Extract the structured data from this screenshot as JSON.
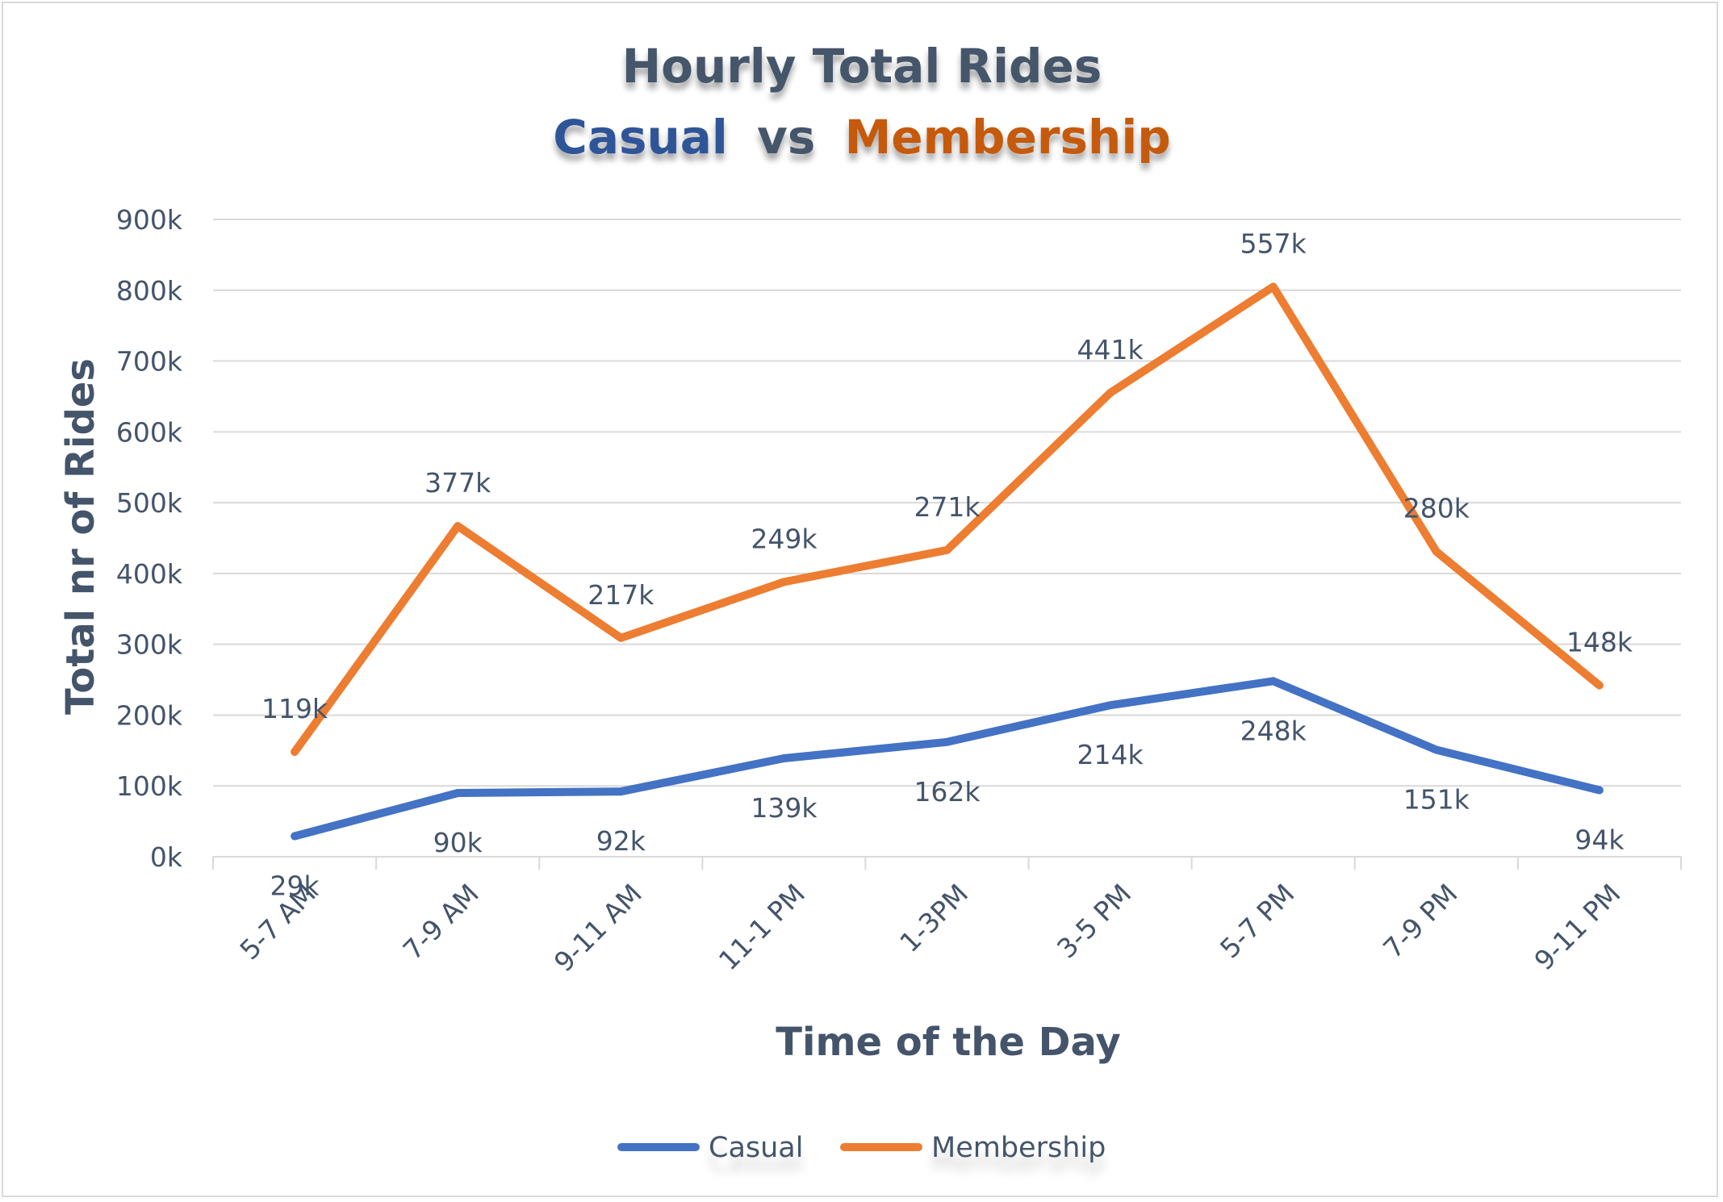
{
  "chart_data": {
    "type": "line",
    "title_line1": "Hourly Total Rides",
    "title_line2": {
      "casual": "Casual",
      "vs": "vs",
      "membership": "Membership"
    },
    "xlabel": "Time of the Day",
    "ylabel": "Total nr of Rides",
    "ylim": [
      0,
      900000
    ],
    "yticks": [
      {
        "value": 0,
        "label": "0k"
      },
      {
        "value": 100000,
        "label": "100k"
      },
      {
        "value": 200000,
        "label": "200k"
      },
      {
        "value": 300000,
        "label": "300k"
      },
      {
        "value": 400000,
        "label": "400k"
      },
      {
        "value": 500000,
        "label": "500k"
      },
      {
        "value": 600000,
        "label": "600k"
      },
      {
        "value": 700000,
        "label": "700k"
      },
      {
        "value": 800000,
        "label": "800k"
      },
      {
        "value": 900000,
        "label": "900k"
      }
    ],
    "categories": [
      "5-7 AM",
      "7-9 AM",
      "9-11 AM",
      "11-1 PM",
      "1-3PM",
      "3-5 PM",
      "5-7 PM",
      "7-9 PM",
      "9-11 PM"
    ],
    "series": [
      {
        "name": "Casual",
        "color": "#4472c4",
        "values": [
          29000,
          90000,
          92000,
          139000,
          162000,
          214000,
          248000,
          151000,
          94000
        ],
        "labels": [
          "29k",
          "90k",
          "92k",
          "139k",
          "162k",
          "214k",
          "248k",
          "151k",
          "94k"
        ]
      },
      {
        "name": "Membership",
        "color": "#ed7d31",
        "values": [
          148000,
          467000,
          309000,
          388000,
          433000,
          655000,
          805000,
          431000,
          242000
        ],
        "labels": [
          "119k",
          "377k",
          "217k",
          "249k",
          "271k",
          "441k",
          "557k",
          "280k",
          "148k"
        ]
      }
    ],
    "grid": true,
    "legend_position": "bottom",
    "colors": {
      "title": "#44546a",
      "casual_title": "#2f5597",
      "membership_title": "#c55a11",
      "gridline": "#d9d9d9",
      "tick_text": "#44546a"
    }
  }
}
